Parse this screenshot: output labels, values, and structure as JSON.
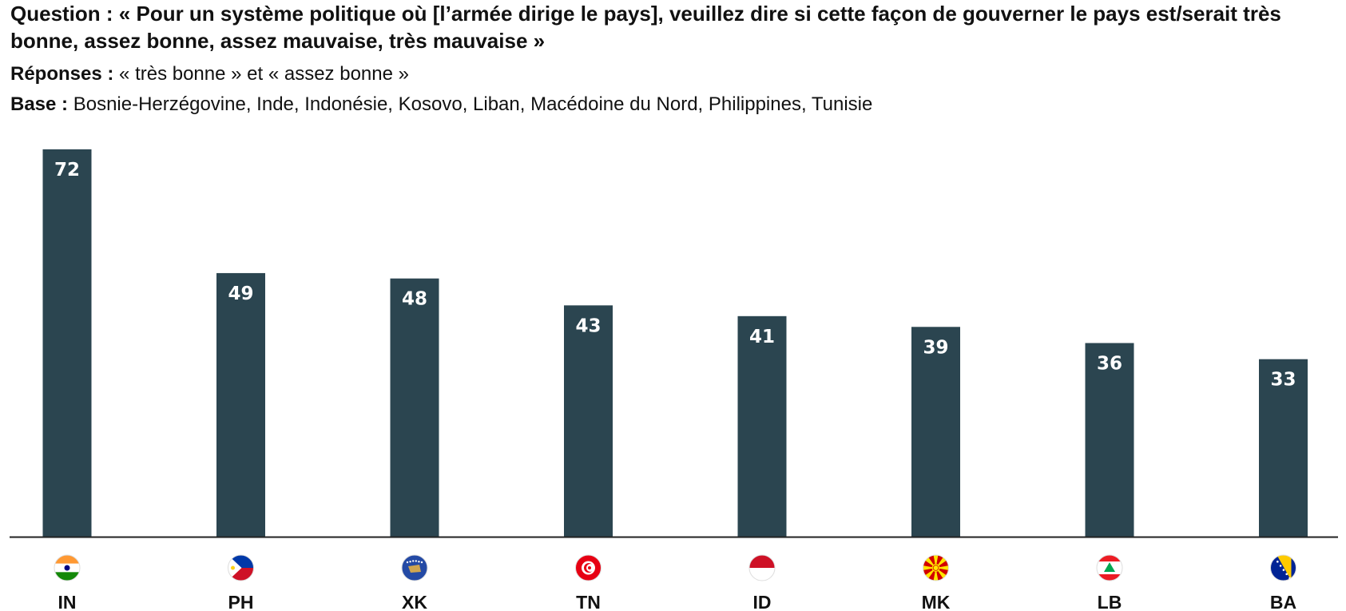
{
  "header": {
    "question_label": "Question :",
    "question_text": "« Pour un système politique où [l’armée dirige le pays], veuillez dire si cette façon de gouverner le pays est/serait très bonne, assez bonne, assez mauvaise, très mauvaise »",
    "responses_label": "Réponses :",
    "responses_text": "« très bonne » et « assez bonne »",
    "base_label": "Base :",
    "base_text": "Bosnie-Herzégovine, Inde, Indonésie, Kosovo, Liban, Macédoine du Nord, Philippines, Tunisie"
  },
  "colors": {
    "bar": "#2b4550",
    "axis": "#222222"
  },
  "chart_data": {
    "type": "bar",
    "categories": [
      "IN",
      "PH",
      "XK",
      "TN",
      "ID",
      "MK",
      "LB",
      "BA"
    ],
    "values": [
      72,
      49,
      48,
      43,
      41,
      39,
      36,
      33
    ],
    "flags": [
      "india-flag-icon",
      "philippines-flag-icon",
      "kosovo-flag-icon",
      "tunisia-flag-icon",
      "indonesia-flag-icon",
      "north-macedonia-flag-icon",
      "lebanon-flag-icon",
      "bosnia-flag-icon"
    ],
    "title": "",
    "xlabel": "",
    "ylabel": "",
    "ylim": [
      0,
      72
    ],
    "grid": false,
    "legend": "none"
  }
}
